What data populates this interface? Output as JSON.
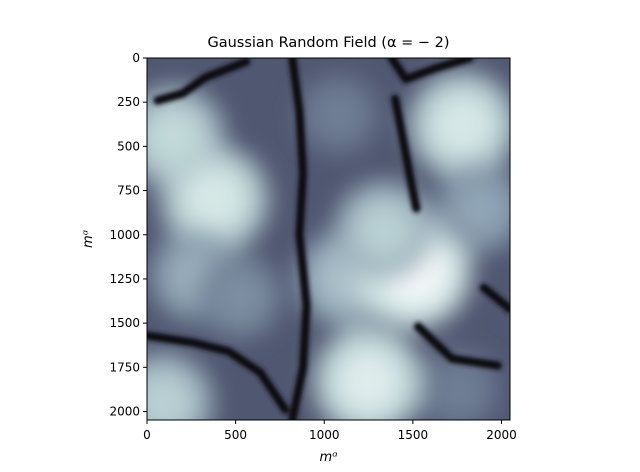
{
  "chart_data": {
    "type": "heatmap",
    "title": "Gaussian Random Field (α = − 2)",
    "xlabel": "mᵅ",
    "ylabel": "mᵅ",
    "xlim": [
      0,
      2048
    ],
    "ylim": [
      2048,
      0
    ],
    "x_ticks": [
      0,
      500,
      1000,
      1500,
      2000
    ],
    "y_ticks": [
      0,
      250,
      500,
      750,
      1000,
      1250,
      1500,
      1750,
      2000
    ],
    "x_tick_labels": [
      "0",
      "500",
      "1000",
      "1500",
      "2000"
    ],
    "y_tick_labels": [
      "0",
      "250",
      "500",
      "750",
      "1000",
      "1250",
      "1500",
      "1750",
      "2000"
    ],
    "colormap": "bone",
    "colormap_stops": [
      "#000000",
      "#2b2b3c",
      "#545c77",
      "#8a9fb0",
      "#c9e0de",
      "#ffffff"
    ],
    "grid": false,
    "bright_regions": [
      {
        "x": 150,
        "y": 450,
        "value": 0.78
      },
      {
        "x": 380,
        "y": 800,
        "value": 0.85
      },
      {
        "x": 280,
        "y": 1230,
        "value": 0.65
      },
      {
        "x": 520,
        "y": 1350,
        "value": 0.55
      },
      {
        "x": 90,
        "y": 1950,
        "value": 0.75
      },
      {
        "x": 1120,
        "y": 1250,
        "value": 0.7
      },
      {
        "x": 1500,
        "y": 1200,
        "value": 0.97
      },
      {
        "x": 1340,
        "y": 980,
        "value": 0.75
      },
      {
        "x": 1250,
        "y": 1830,
        "value": 0.88
      },
      {
        "x": 1780,
        "y": 380,
        "value": 0.85
      },
      {
        "x": 1880,
        "y": 850,
        "value": 0.62
      },
      {
        "x": 1080,
        "y": 320,
        "value": 0.5
      },
      {
        "x": 1760,
        "y": 1880,
        "value": 0.5
      }
    ],
    "dark_channels": [
      [
        [
          60,
          240
        ],
        [
          200,
          200
        ],
        [
          330,
          110
        ],
        [
          560,
          20
        ]
      ],
      [
        [
          820,
          0
        ],
        [
          860,
          300
        ],
        [
          880,
          650
        ],
        [
          860,
          1000
        ],
        [
          900,
          1400
        ],
        [
          880,
          1750
        ],
        [
          820,
          2048
        ]
      ],
      [
        [
          1380,
          0
        ],
        [
          1460,
          120
        ],
        [
          1620,
          60
        ],
        [
          1820,
          0
        ]
      ],
      [
        [
          1400,
          230
        ],
        [
          1480,
          650
        ],
        [
          1520,
          850
        ]
      ],
      [
        [
          0,
          1570
        ],
        [
          260,
          1610
        ],
        [
          460,
          1660
        ],
        [
          640,
          1780
        ],
        [
          780,
          1990
        ]
      ],
      [
        [
          1530,
          1520
        ],
        [
          1720,
          1700
        ],
        [
          1980,
          1740
        ]
      ],
      [
        [
          1900,
          1300
        ],
        [
          2048,
          1420
        ]
      ]
    ]
  }
}
